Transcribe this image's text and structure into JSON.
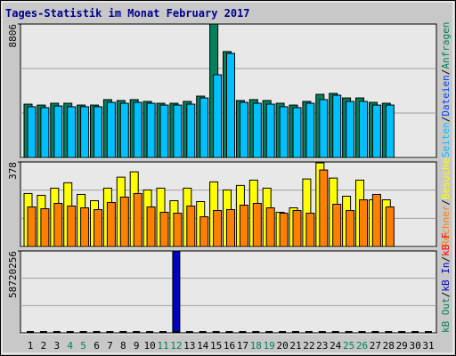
{
  "chart_data": [
    {
      "type": "bar",
      "title": "Tages-Statistik im Monat February 2017",
      "ylim": [
        0,
        8806
      ],
      "yticks": [
        8806
      ],
      "series": [
        {
          "name": "Anfragen",
          "color": "#00805c",
          "values": [
            3520,
            3460,
            3580,
            3580,
            3460,
            3460,
            3820,
            3760,
            3820,
            3700,
            3580,
            3580,
            3700,
            4050,
            8806,
            6990,
            3760,
            3820,
            3760,
            3580,
            3460,
            3700,
            4170,
            4230,
            3930,
            3930,
            3640,
            3580,
            null,
            null,
            null
          ]
        },
        {
          "name": "Dateien",
          "color": "#0040ff",
          "values": [
            null,
            null,
            null,
            null,
            null,
            null,
            null,
            null,
            null,
            null,
            null,
            null,
            null,
            null,
            null,
            null,
            null,
            null,
            null,
            null,
            null,
            null,
            null,
            null,
            null,
            null,
            null,
            null,
            null,
            null,
            null
          ]
        },
        {
          "name": "Seiten",
          "color": "#00c0ff",
          "values": [
            3350,
            3290,
            3400,
            3350,
            3350,
            3350,
            3640,
            3580,
            3640,
            3580,
            3460,
            3460,
            3520,
            3930,
            5460,
            6870,
            3640,
            3580,
            3520,
            3350,
            3290,
            3580,
            3820,
            4110,
            3700,
            3700,
            3460,
            3460,
            null,
            null,
            null
          ]
        }
      ],
      "legend_separator": "/"
    },
    {
      "type": "bar",
      "ylim": [
        0,
        378
      ],
      "yticks": [
        378
      ],
      "series": [
        {
          "name": "Besuche",
          "color": "#ffff00",
          "values": [
            237,
            229,
            261,
            285,
            233,
            205,
            261,
            310,
            334,
            253,
            261,
            205,
            261,
            201,
            289,
            253,
            273,
            297,
            261,
            153,
            173,
            302,
            374,
            306,
            225,
            297,
            209,
            209,
            null,
            null,
            null
          ]
        },
        {
          "name": "Rechner",
          "color": "#ff8000",
          "values": [
            177,
            169,
            193,
            181,
            173,
            165,
            197,
            221,
            237,
            177,
            153,
            149,
            181,
            133,
            161,
            165,
            185,
            193,
            173,
            149,
            161,
            149,
            342,
            189,
            161,
            209,
            233,
            177,
            null,
            null,
            null
          ]
        }
      ],
      "legend_separator": "/"
    },
    {
      "type": "bar",
      "ylim": [
        0,
        58720256
      ],
      "yticks": [
        58720256
      ],
      "categories": [
        "1",
        "2",
        "3",
        "4",
        "5",
        "6",
        "7",
        "8",
        "9",
        "10",
        "11",
        "12",
        "13",
        "14",
        "15",
        "16",
        "17",
        "18",
        "19",
        "20",
        "21",
        "22",
        "23",
        "24",
        "25",
        "26",
        "27",
        "28",
        "29",
        "30",
        "31"
      ],
      "category_colors": [
        "#000000",
        "#000000",
        "#000000",
        "#00805c",
        "#00805c",
        "#000000",
        "#000000",
        "#000000",
        "#000000",
        "#000000",
        "#00805c",
        "#00805c",
        "#000000",
        "#000000",
        "#000000",
        "#000000",
        "#000000",
        "#00805c",
        "#00805c",
        "#000000",
        "#000000",
        "#000000",
        "#000000",
        "#000000",
        "#00805c",
        "#00805c",
        "#000000",
        "#000000",
        "#000000",
        "#000000",
        "#000000"
      ],
      "series": [
        {
          "name": "kB F",
          "color": "#ff0000",
          "values": [
            null,
            null,
            null,
            null,
            null,
            null,
            null,
            null,
            null,
            null,
            null,
            null,
            null,
            null,
            null,
            null,
            null,
            null,
            null,
            null,
            null,
            null,
            null,
            null,
            null,
            null,
            null,
            null,
            null,
            null,
            null
          ]
        },
        {
          "name": "kB In",
          "color": "#0000c0",
          "values": [
            0,
            0,
            0,
            0,
            0,
            0,
            0,
            0,
            0,
            0,
            0,
            58720256,
            0,
            0,
            0,
            0,
            0,
            0,
            0,
            0,
            0,
            0,
            0,
            0,
            0,
            0,
            0,
            0,
            null,
            null,
            null
          ]
        },
        {
          "name": "kB Out",
          "color": "#00805c",
          "values": [
            null,
            null,
            null,
            null,
            null,
            null,
            null,
            null,
            null,
            null,
            null,
            null,
            null,
            null,
            null,
            null,
            null,
            null,
            null,
            null,
            null,
            null,
            null,
            null,
            null,
            null,
            null,
            null,
            null,
            null,
            null
          ]
        }
      ],
      "legend_separator": "/"
    }
  ]
}
